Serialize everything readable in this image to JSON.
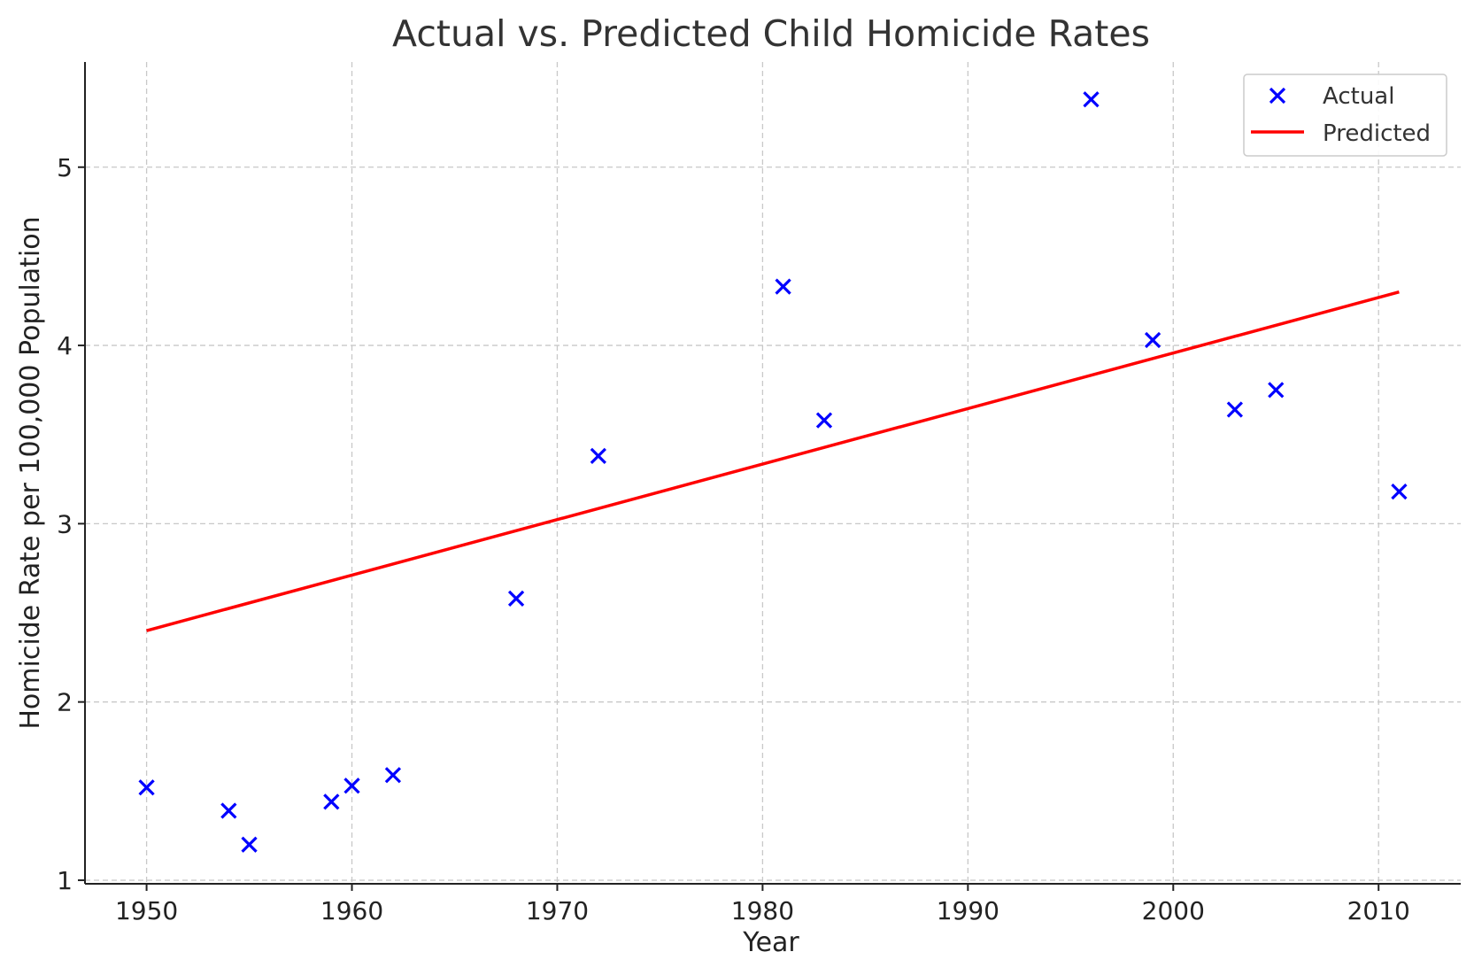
{
  "chart_data": {
    "type": "scatter",
    "title": "Actual vs. Predicted Child Homicide Rates",
    "xlabel": "Year",
    "ylabel": "Homicide Rate per 100,000 Population",
    "xlim": [
      1947,
      2014
    ],
    "ylim": [
      0.98,
      5.59
    ],
    "xticks": [
      1950,
      1960,
      1970,
      1980,
      1990,
      2000,
      2010
    ],
    "yticks": [
      1,
      2,
      3,
      4,
      5
    ],
    "grid": true,
    "legend_position": "top-right",
    "colors": {
      "actual": "#0000ff",
      "predicted": "#ff0000"
    },
    "series": [
      {
        "name": "Actual",
        "type": "scatter",
        "marker": "x",
        "x": [
          1950,
          1954,
          1955,
          1959,
          1960,
          1962,
          1968,
          1972,
          1981,
          1983,
          1996,
          1999,
          2003,
          2005,
          2011
        ],
        "y": [
          1.52,
          1.39,
          1.2,
          1.44,
          1.53,
          1.59,
          2.58,
          3.38,
          4.33,
          3.58,
          5.38,
          4.03,
          3.64,
          3.75,
          3.18
        ]
      },
      {
        "name": "Predicted",
        "type": "line",
        "x": [
          1950,
          2011
        ],
        "y": [
          2.4,
          4.3
        ]
      }
    ]
  }
}
